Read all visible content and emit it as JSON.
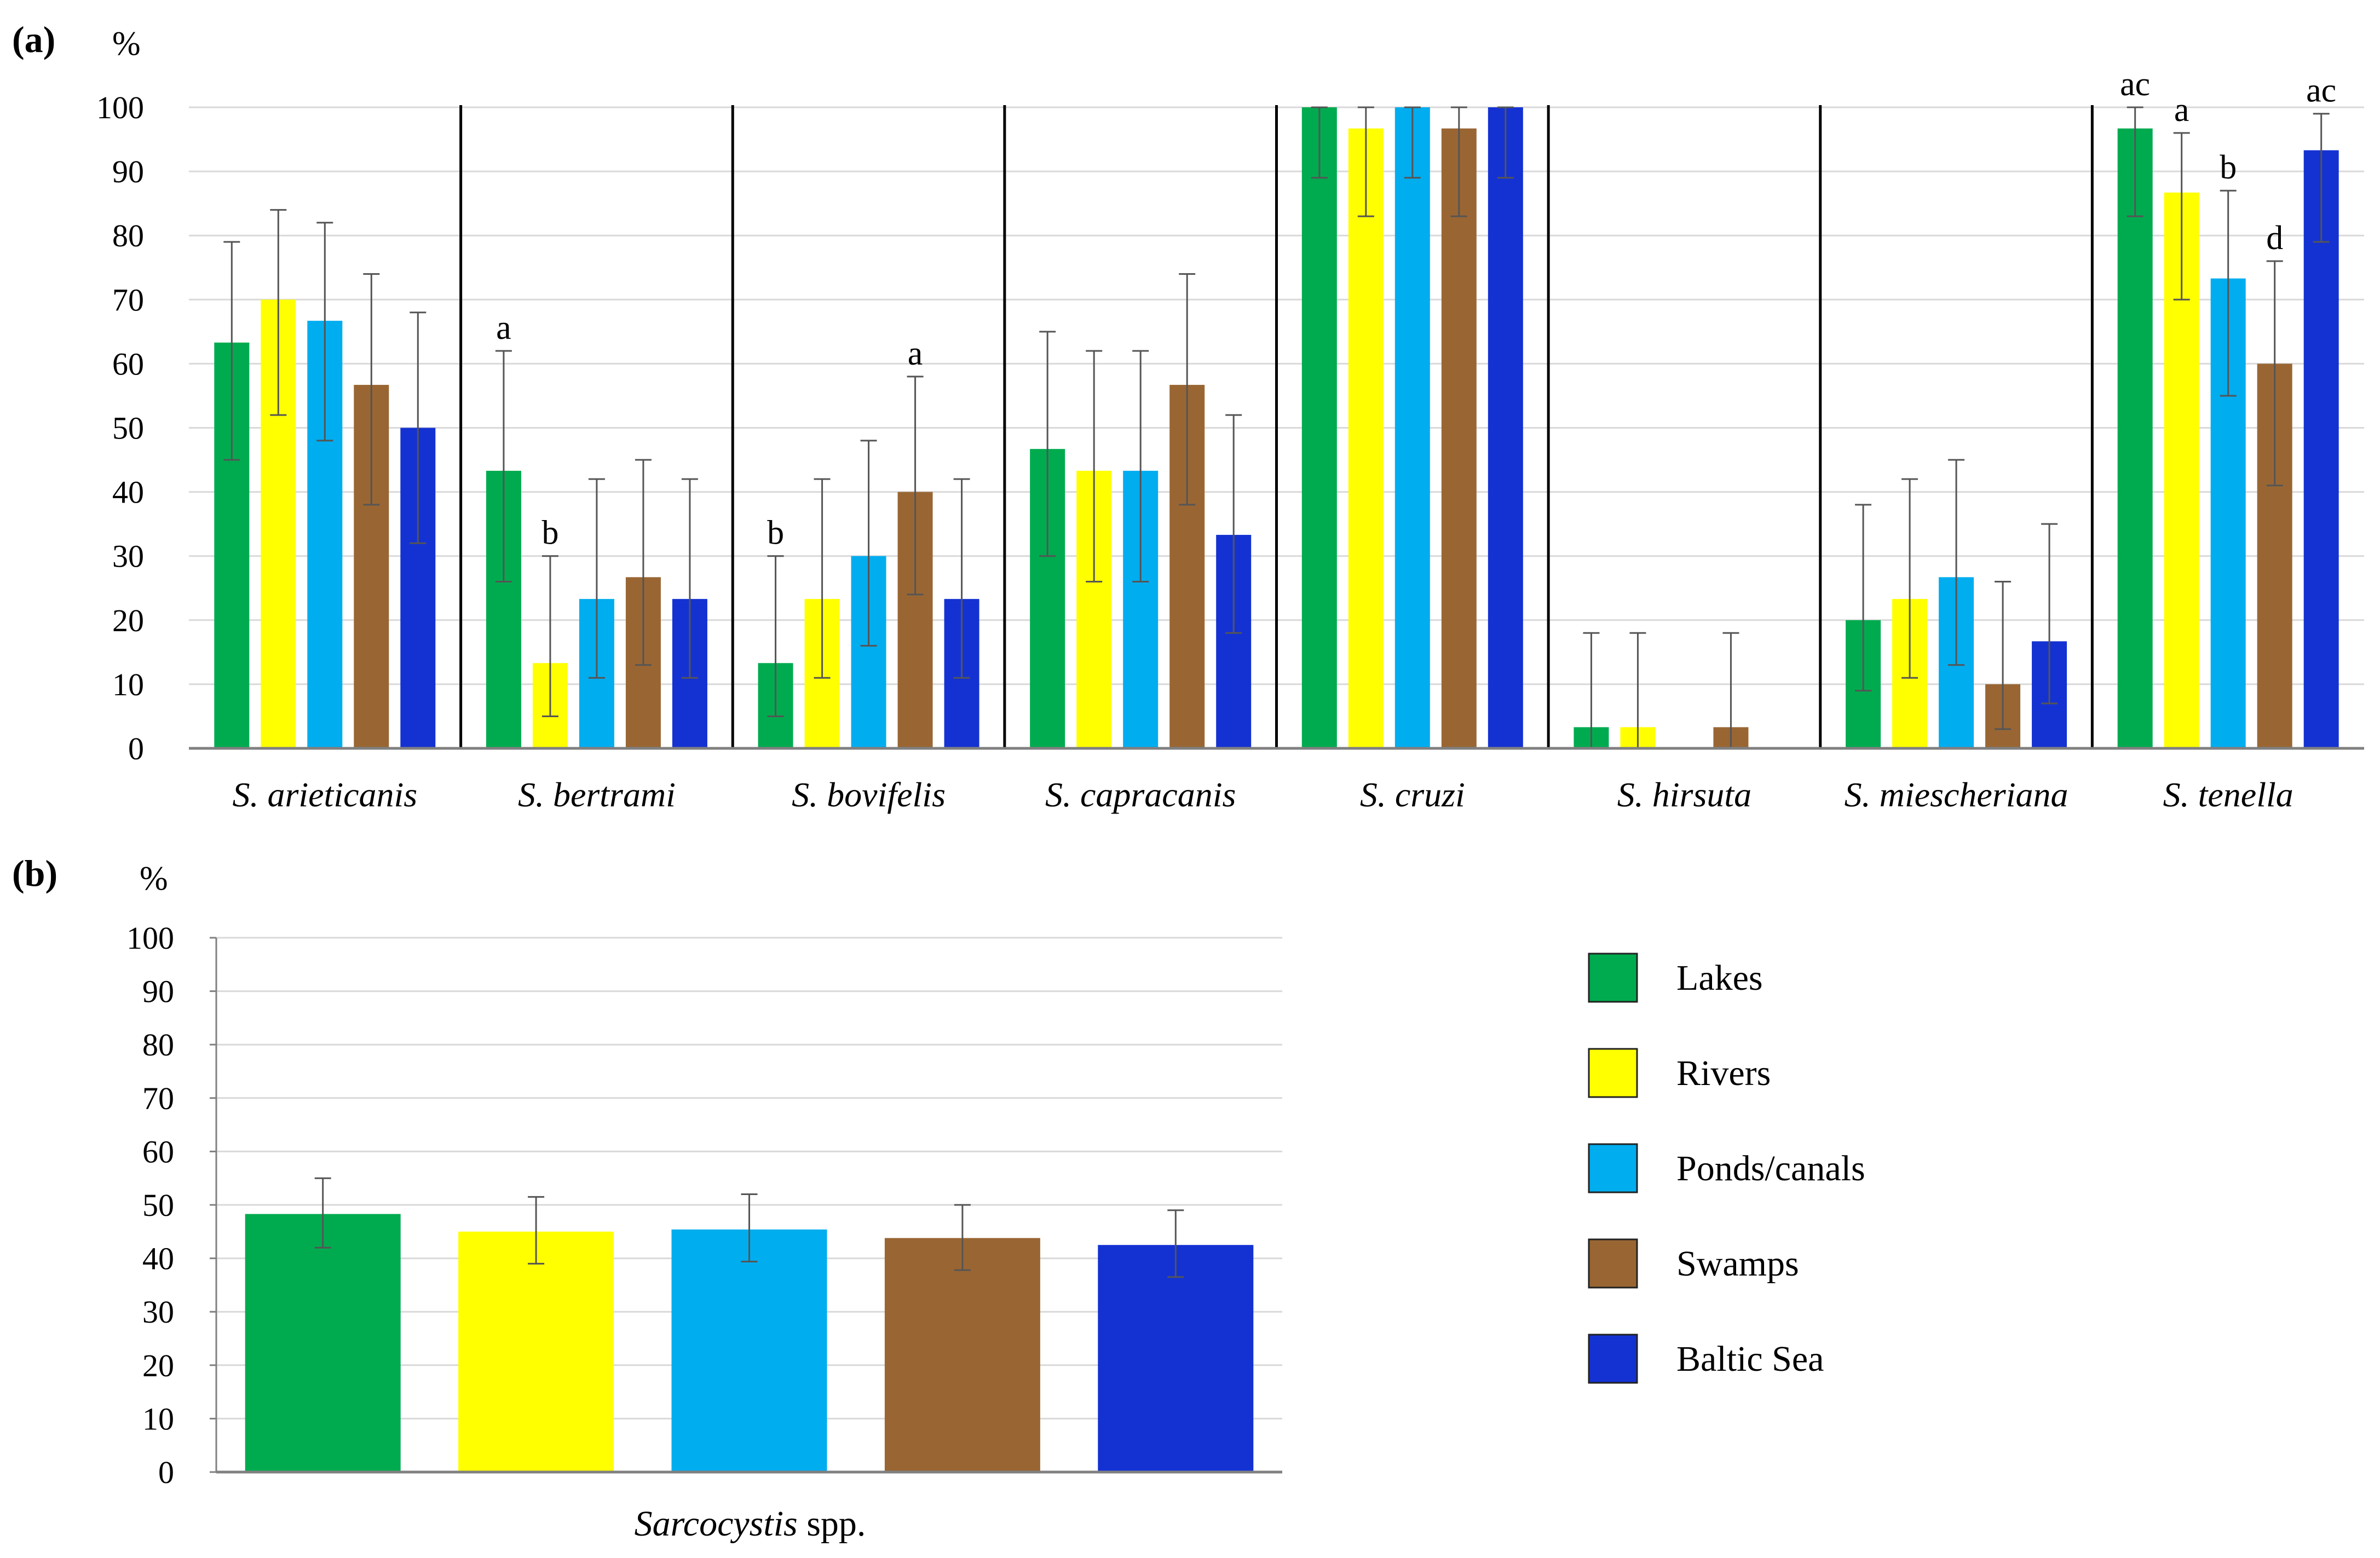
{
  "colors": {
    "lakes": "#00ab4f",
    "rivers": "#ffff00",
    "ponds": "#00adef",
    "swamps": "#996633",
    "baltic": "#1432d2",
    "grid": "#d9d9d9",
    "axis": "#808080",
    "error_bar": "#555555",
    "divider": "#000000"
  },
  "legend": [
    "Lakes",
    "Rivers",
    "Ponds/canals",
    "Swamps",
    "Baltic Sea"
  ],
  "chart_data": [
    {
      "type": "bar",
      "panel": "(a)",
      "unit": "%",
      "ylim": [
        0,
        100
      ],
      "yticks": [
        "0",
        "10",
        "20",
        "30",
        "40",
        "50",
        "60",
        "70",
        "80",
        "90",
        "100"
      ],
      "grid": true,
      "categories": [
        "S. arieticanis",
        "S. bertrami",
        "S. bovifelis",
        "S. capracanis",
        "S. cruzi",
        "S. hirsuta",
        "S. miescheriana",
        "S. tenella"
      ],
      "series": [
        {
          "name": "Lakes",
          "values": [
            63.3,
            43.3,
            13.3,
            46.7,
            100,
            3.3,
            20.0,
            96.7
          ],
          "err_low": [
            45,
            26,
            5,
            30,
            89,
            0,
            9,
            83
          ],
          "err_high": [
            79,
            62,
            30,
            65,
            100,
            18,
            38,
            100
          ]
        },
        {
          "name": "Rivers",
          "values": [
            70.0,
            13.3,
            23.3,
            43.3,
            96.7,
            3.3,
            23.3,
            86.7
          ],
          "err_low": [
            52,
            5,
            11,
            26,
            83,
            0,
            11,
            70
          ],
          "err_high": [
            84,
            30,
            42,
            62,
            100,
            18,
            42,
            96
          ]
        },
        {
          "name": "Ponds/canals",
          "values": [
            66.7,
            23.3,
            30.0,
            43.3,
            100,
            0,
            26.7,
            73.3
          ],
          "err_low": [
            48,
            11,
            16,
            26,
            89,
            null,
            13,
            55
          ],
          "err_high": [
            82,
            42,
            48,
            62,
            100,
            null,
            45,
            87
          ]
        },
        {
          "name": "Swamps",
          "values": [
            56.7,
            26.7,
            40.0,
            56.7,
            96.7,
            3.3,
            10.0,
            60.0
          ],
          "err_low": [
            38,
            13,
            24,
            38,
            83,
            0,
            3,
            41
          ],
          "err_high": [
            74,
            45,
            58,
            74,
            100,
            18,
            26,
            76
          ]
        },
        {
          "name": "Baltic Sea",
          "values": [
            50.0,
            23.3,
            23.3,
            33.3,
            100,
            0,
            16.7,
            93.3
          ],
          "err_low": [
            32,
            11,
            11,
            18,
            89,
            null,
            7,
            79
          ],
          "err_high": [
            68,
            42,
            42,
            52,
            100,
            null,
            35,
            99
          ]
        }
      ],
      "annotations": [
        {
          "category": "S. bertrami",
          "series": "Lakes",
          "text": "a"
        },
        {
          "category": "S. bertrami",
          "series": "Rivers",
          "text": "b"
        },
        {
          "category": "S. bovifelis",
          "series": "Lakes",
          "text": "b"
        },
        {
          "category": "S. bovifelis",
          "series": "Swamps",
          "text": "a"
        },
        {
          "category": "S. tenella",
          "series": "Lakes",
          "text": "ac"
        },
        {
          "category": "S. tenella",
          "series": "Rivers",
          "text": "a"
        },
        {
          "category": "S. tenella",
          "series": "Ponds/canals",
          "text": "b"
        },
        {
          "category": "S. tenella",
          "series": "Swamps",
          "text": "d"
        },
        {
          "category": "S. tenella",
          "series": "Baltic Sea",
          "text": "ac"
        }
      ]
    },
    {
      "type": "bar",
      "panel": "(b)",
      "unit": "%",
      "ylim": [
        0,
        100
      ],
      "yticks": [
        "0",
        "10",
        "20",
        "30",
        "40",
        "50",
        "60",
        "70",
        "80",
        "90",
        "100"
      ],
      "grid": true,
      "xlabel_italic": "Sarcocystis",
      "xlabel_rest": " spp.",
      "series": [
        {
          "name": "Lakes",
          "value": 48.3,
          "err_low": 42,
          "err_high": 55
        },
        {
          "name": "Rivers",
          "value": 45.0,
          "err_low": 39,
          "err_high": 51.5
        },
        {
          "name": "Ponds/canals",
          "value": 45.4,
          "err_low": 39.4,
          "err_high": 52
        },
        {
          "name": "Swamps",
          "value": 43.8,
          "err_low": 37.8,
          "err_high": 50
        },
        {
          "name": "Baltic Sea",
          "value": 42.5,
          "err_low": 36.5,
          "err_high": 49
        }
      ]
    }
  ]
}
